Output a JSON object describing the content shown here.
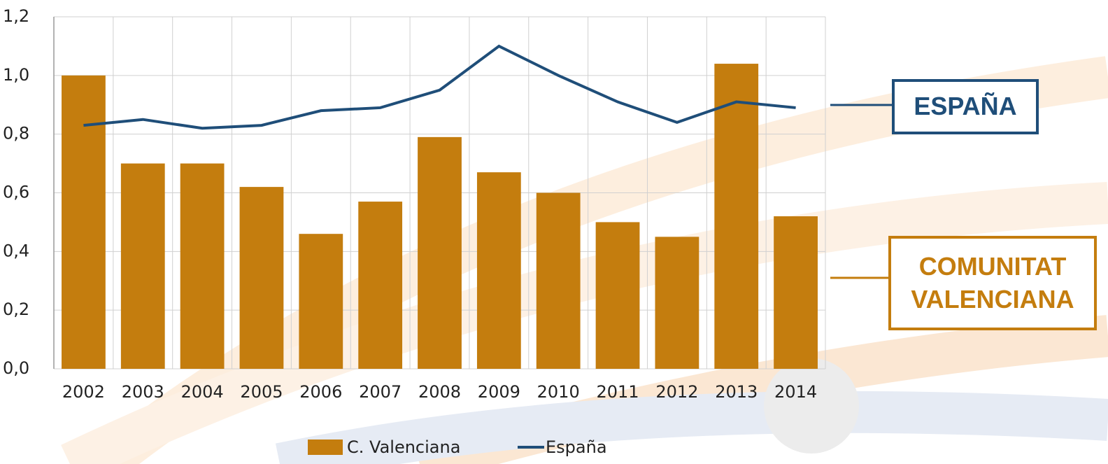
{
  "chart_data": {
    "type": "bar",
    "categories": [
      "2002",
      "2003",
      "2004",
      "2005",
      "2006",
      "2007",
      "2008",
      "2009",
      "2010",
      "2011",
      "2012",
      "2013",
      "2014"
    ],
    "series": [
      {
        "name": "C. Valenciana",
        "type": "bar",
        "color": "#c47d0e",
        "values": [
          1.0,
          0.7,
          0.7,
          0.62,
          0.46,
          0.57,
          0.79,
          0.67,
          0.6,
          0.5,
          0.45,
          1.04,
          0.52
        ]
      },
      {
        "name": "España",
        "type": "line",
        "color": "#1f4e79",
        "values": [
          0.83,
          0.85,
          0.82,
          0.83,
          0.88,
          0.89,
          0.95,
          1.1,
          1.0,
          0.91,
          0.84,
          0.91,
          0.89
        ]
      }
    ],
    "ylim": [
      0,
      1.2
    ],
    "yticks": [
      {
        "value": 0,
        "label": "0,0"
      },
      {
        "value": 0.2,
        "label": "0,2"
      },
      {
        "value": 0.4,
        "label": "0,4"
      },
      {
        "value": 0.6,
        "label": "0,6"
      },
      {
        "value": 0.8,
        "label": "0,8"
      },
      {
        "value": 1.0,
        "label": "1,0"
      },
      {
        "value": 1.2,
        "label": "1,2"
      }
    ],
    "grid": true,
    "annotations": [
      "ESPAÑA",
      "COMUNITAT VALENCIANA"
    ]
  }
}
